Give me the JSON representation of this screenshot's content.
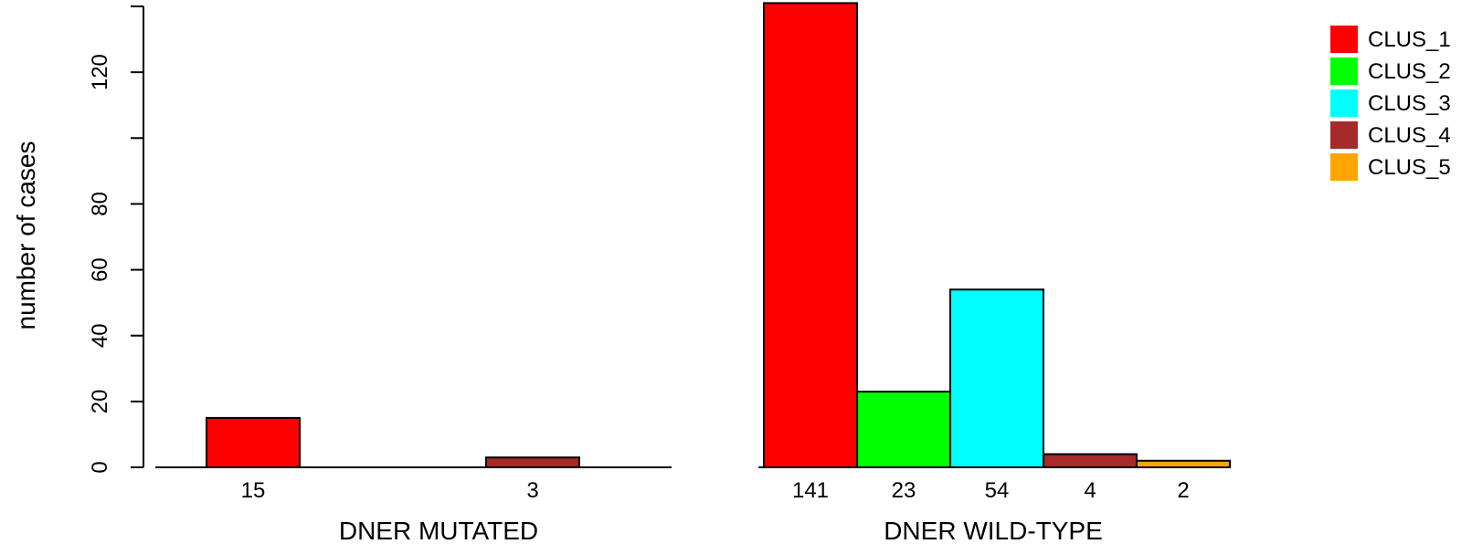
{
  "chart_data": {
    "type": "bar",
    "ylabel": "number of cases",
    "ylim": [
      0,
      140
    ],
    "y_ticks": [
      0,
      20,
      40,
      60,
      80,
      100,
      120
    ],
    "y_tick_labels": [
      "0",
      "20",
      "40",
      "60",
      "80",
      "",
      "120"
    ],
    "legend_position": "top-right",
    "series": [
      {
        "name": "CLUS_1",
        "color": "#ff0000"
      },
      {
        "name": "CLUS_2",
        "color": "#00ff00"
      },
      {
        "name": "CLUS_3",
        "color": "#00ffff"
      },
      {
        "name": "CLUS_4",
        "color": "#a52a2a"
      },
      {
        "name": "CLUS_5",
        "color": "#ffa500"
      }
    ],
    "groups": [
      {
        "label": "DNER MUTATED",
        "values": [
          15,
          0,
          0,
          3,
          0
        ],
        "labels": [
          "15",
          "",
          "",
          "3",
          ""
        ]
      },
      {
        "label": "DNER WILD-TYPE",
        "values": [
          141,
          23,
          54,
          4,
          2
        ],
        "labels": [
          "141",
          "23",
          "54",
          "4",
          "2"
        ]
      }
    ]
  }
}
